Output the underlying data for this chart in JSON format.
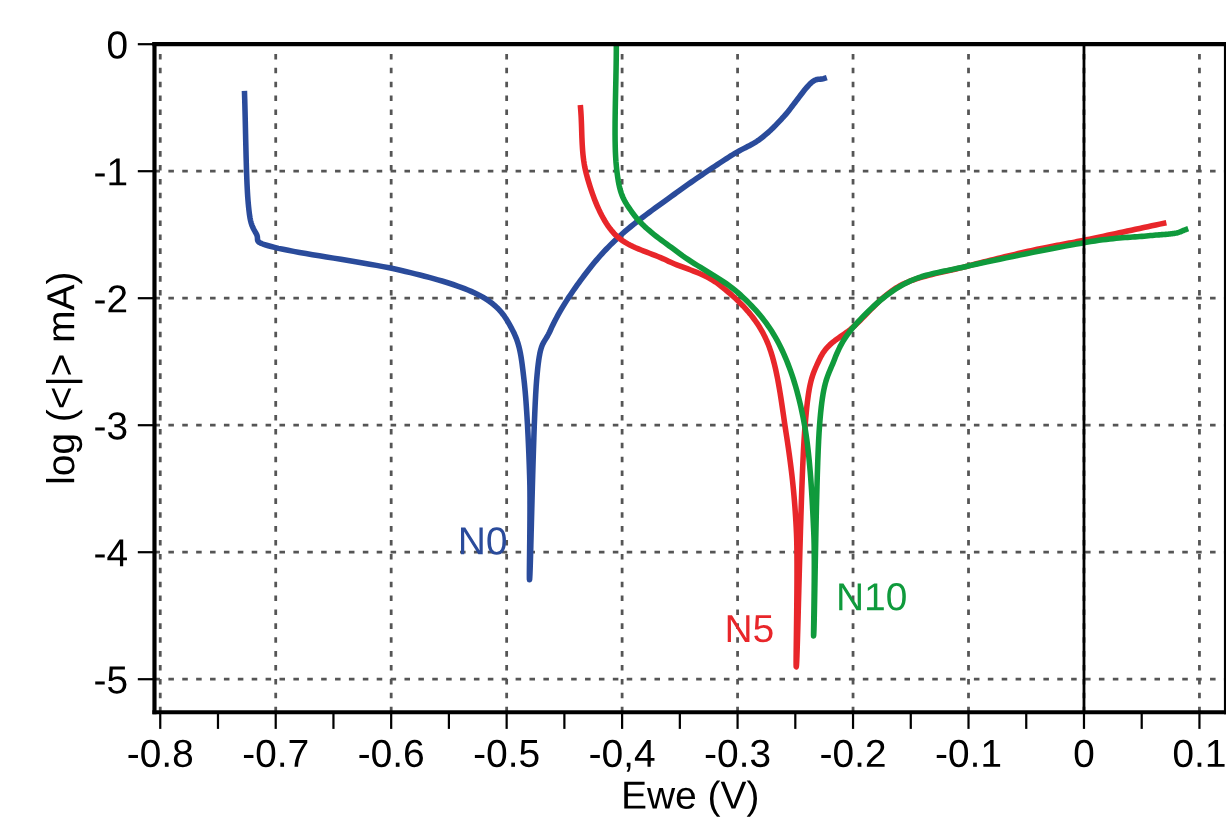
{
  "chart_data": {
    "type": "line",
    "xlabel": "Ewe (V)",
    "ylabel": "log (<|> mA)",
    "xlim": [
      -0.805,
      0.123
    ],
    "ylim": [
      -5.26,
      0
    ],
    "xticks": [
      -0.8,
      {
        "value": -0.75,
        "label": null
      },
      -0.7,
      {
        "value": -0.65,
        "label": null
      },
      -0.6,
      {
        "value": -0.55,
        "label": null
      },
      -0.5,
      {
        "value": -0.45,
        "label": null
      },
      {
        "value": -0.4,
        "label": "-0,4"
      },
      {
        "value": -0.35,
        "label": null
      },
      -0.3,
      {
        "value": -0.25,
        "label": null
      },
      -0.2,
      {
        "value": -0.15,
        "label": null
      },
      -0.1,
      {
        "value": -0.05,
        "label": null
      },
      0,
      {
        "value": 0.05,
        "label": null
      },
      0.1
    ],
    "yticks": [
      0,
      -1,
      -2,
      -3,
      -4,
      -5
    ],
    "grid": true,
    "line_style": "solid",
    "marker": "none",
    "series": [
      {
        "name": "N0",
        "color": "#2a4b9b",
        "x": [
          -0.727,
          -0.724,
          -0.717,
          -0.701,
          -0.592,
          -0.523,
          -0.495,
          -0.485,
          -0.48,
          -0.48,
          -0.474,
          -0.462,
          -0.436,
          -0.402,
          -0.35,
          -0.306,
          -0.281,
          -0.26,
          -0.237,
          -0.225
        ],
        "values": [
          -0.39,
          -1.23,
          -1.49,
          -1.6,
          -1.78,
          -1.98,
          -2.25,
          -2.64,
          -3.43,
          -4.2,
          -2.64,
          -2.25,
          -1.86,
          -1.51,
          -1.15,
          -0.88,
          -0.75,
          -0.57,
          -0.31,
          -0.27
        ]
      },
      {
        "name": "N5",
        "color": "#e8262a",
        "x": [
          -0.436,
          -0.431,
          -0.407,
          -0.362,
          -0.315,
          -0.275,
          -0.258,
          -0.249,
          -0.249,
          -0.242,
          -0.229,
          -0.199,
          -0.159,
          -0.102,
          -0.043,
          0.002,
          0.069
        ],
        "values": [
          -0.5,
          -1.02,
          -1.49,
          -1.7,
          -1.9,
          -2.33,
          -3.06,
          -3.85,
          -4.89,
          -3.06,
          -2.48,
          -2.22,
          -1.9,
          -1.75,
          -1.62,
          -1.54,
          -1.41
        ]
      },
      {
        "name": "N10",
        "color": "#0f9a3c",
        "x": [
          -0.405,
          -0.405,
          -0.39,
          -0.35,
          -0.298,
          -0.263,
          -0.242,
          -0.234,
          -0.234,
          -0.229,
          -0.216,
          -0.194,
          -0.154,
          -0.102,
          0.002,
          0.054,
          0.078,
          0.088
        ],
        "values": [
          0,
          -0.96,
          -1.34,
          -1.65,
          -1.97,
          -2.38,
          -3.0,
          -3.85,
          -4.64,
          -3.0,
          -2.48,
          -2.17,
          -1.88,
          -1.75,
          -1.56,
          -1.51,
          -1.49,
          -1.46
        ]
      }
    ],
    "ref_lines": [
      {
        "axis": "x",
        "value": 0,
        "color": "#000000",
        "line_style": "solid"
      }
    ]
  }
}
